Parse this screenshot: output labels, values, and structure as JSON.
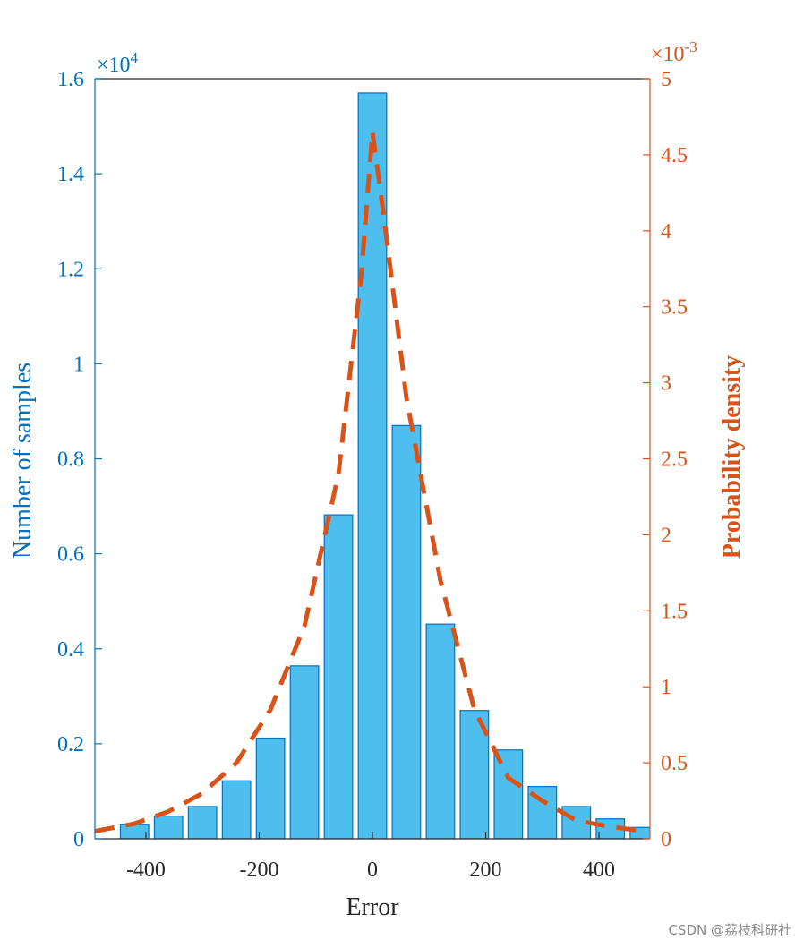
{
  "chart_data": {
    "type": "bar",
    "xlabel": "Error",
    "ylabel_left": "Number of samples",
    "ylabel_right": "Probability density",
    "xlim": [
      -490,
      490
    ],
    "xticks": [
      -400,
      -200,
      0,
      200,
      400
    ],
    "x_tick_labels": [
      "-400",
      "-200",
      "0",
      "200",
      "400"
    ],
    "ylim_left": [
      0,
      16000
    ],
    "yticks_left": [
      0,
      2000,
      4000,
      6000,
      8000,
      10000,
      12000,
      14000,
      16000
    ],
    "y_tick_labels_left": [
      "0",
      "0.2",
      "0.4",
      "0.6",
      "0.8",
      "1",
      "1.2",
      "1.4",
      "1.6"
    ],
    "y_multiplier_left": "×10^4",
    "ylim_right": [
      0,
      0.005
    ],
    "yticks_right": [
      0,
      0.0005,
      0.001,
      0.0015,
      0.002,
      0.0025,
      0.003,
      0.0035,
      0.004,
      0.0045,
      0.005
    ],
    "y_tick_labels_right": [
      "0",
      "0.5",
      "1",
      "1.5",
      "2",
      "2.5",
      "3",
      "3.5",
      "4",
      "4.5",
      "5"
    ],
    "y_multiplier_right": "×10^-3",
    "bar_width": 50,
    "bars": {
      "x": [
        -420,
        -360,
        -300,
        -240,
        -180,
        -120,
        -60,
        0,
        60,
        120,
        180,
        240,
        300,
        360,
        420,
        480
      ],
      "values": [
        300,
        480,
        680,
        1220,
        2120,
        3640,
        6820,
        15700,
        8700,
        4520,
        2700,
        1870,
        1100,
        680,
        420,
        240
      ]
    },
    "density_curve": {
      "style": "dashed",
      "x": [
        -490,
        -420,
        -360,
        -300,
        -240,
        -180,
        -120,
        -60,
        -20,
        0,
        20,
        60,
        120,
        180,
        240,
        300,
        360,
        420,
        480
      ],
      "y": [
        5e-05,
        0.0001,
        0.00018,
        0.0003,
        0.0005,
        0.00085,
        0.0014,
        0.0024,
        0.0037,
        0.00465,
        0.0041,
        0.0029,
        0.0017,
        0.00085,
        0.0004,
        0.00025,
        0.00012,
        8e-05,
        5e-05
      ]
    },
    "colors": {
      "left_axis": "#0072BD",
      "bar_fill": "#4DBEEE",
      "bar_edge": "#0072BD",
      "right_axis": "#D95319",
      "curve": "#D95319"
    }
  },
  "watermark": "CSDN @荔枝科研社"
}
